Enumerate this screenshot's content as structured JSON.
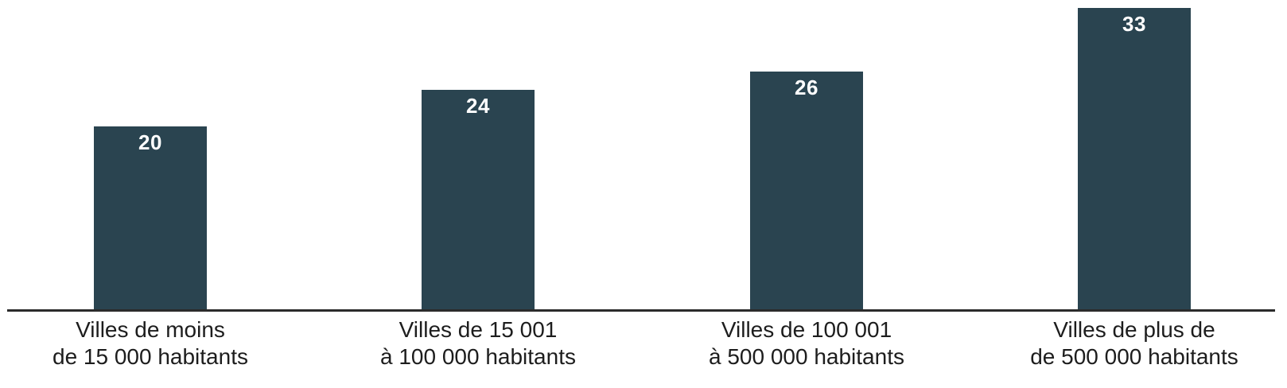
{
  "chart_data": {
    "type": "bar",
    "title": "",
    "xlabel": "",
    "ylabel": "",
    "categories": [
      "Villes de moins de 15 000 habitants",
      "Villes de 15 001 à 100 000 habitants",
      "Villes de 100 001 à 500 000 habitants",
      "Villes de plus de de 500 000 habitants"
    ],
    "categories_lines": [
      [
        "Villes de moins",
        "de 15 000 habitants"
      ],
      [
        "Villes de 15 001",
        "à 100 000 habitants"
      ],
      [
        "Villes de 100 001",
        "à 500 000 habitants"
      ],
      [
        "Villes de plus de",
        "de 500 000 habitants"
      ]
    ],
    "values": [
      20,
      24,
      26,
      33
    ],
    "ylim": [
      0,
      33
    ],
    "grid": false,
    "legend": "none",
    "value_labels": "inside-top",
    "colors": {
      "bar": "#2a4450",
      "value_label": "#ffffff",
      "axis_line": "#2b2b2b",
      "category_label": "#1d1d1d",
      "background": "#ffffff"
    }
  }
}
